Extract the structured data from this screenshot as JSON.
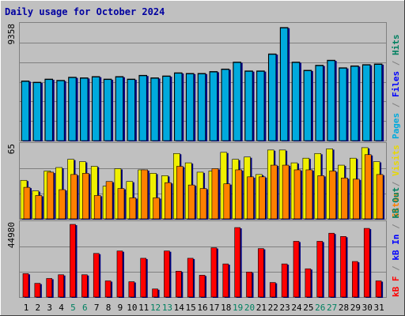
{
  "title": "Daily usage for October 2024",
  "colors": {
    "background": "#c0c0c0",
    "frame": "#808080",
    "title": "#0000a0",
    "pages": "#00aadd",
    "files": "#0000ff",
    "hits": "#008060",
    "visits": "#f0f000",
    "sites": "#ff8000",
    "kb_in": "#0000ff",
    "kb_out": "#008060",
    "kb_f": "#ff0000",
    "weekend_day": "#008060",
    "weekday_day": "#000000"
  },
  "chart_data": [
    {
      "type": "bar",
      "panel": "hits",
      "categories": [
        "1",
        "2",
        "3",
        "4",
        "5",
        "6",
        "7",
        "8",
        "9",
        "10",
        "11",
        "12",
        "13",
        "14",
        "15",
        "16",
        "17",
        "18",
        "19",
        "20",
        "21",
        "22",
        "23",
        "24",
        "25",
        "26",
        "27",
        "28",
        "29",
        "30",
        "31"
      ],
      "weekend_days": [
        "5",
        "6",
        "12",
        "13",
        "19",
        "20",
        "26",
        "27"
      ],
      "ymax_label": "9358",
      "ylim": [
        0,
        9358
      ],
      "series": [
        {
          "name": "Pages",
          "values": [
            4700,
            4600,
            4850,
            4750,
            5000,
            4950,
            5050,
            4850,
            5050,
            4850,
            5150,
            4950,
            5100,
            5350,
            5300,
            5300,
            5450,
            5650,
            6200,
            5500,
            5500,
            6850,
            8950,
            6200,
            5550,
            5950,
            6350,
            5750,
            5900,
            6000,
            6050
          ]
        },
        {
          "name": "Files",
          "values": [
            4700,
            4600,
            4850,
            4750,
            5000,
            4950,
            5050,
            4850,
            5050,
            4850,
            5150,
            4950,
            5100,
            5350,
            5300,
            5300,
            5450,
            5650,
            6200,
            5500,
            5500,
            6850,
            8950,
            6200,
            5550,
            5950,
            6350,
            5750,
            5900,
            6000,
            6050
          ]
        },
        {
          "name": "Hits",
          "values": [
            4750,
            4650,
            4900,
            4800,
            5050,
            5000,
            5100,
            4900,
            5100,
            4900,
            5200,
            5000,
            5150,
            5400,
            5350,
            5350,
            5500,
            5700,
            6250,
            5550,
            5550,
            6900,
            9000,
            6250,
            5600,
            6000,
            6400,
            5800,
            5950,
            6050,
            6100
          ]
        }
      ]
    },
    {
      "type": "bar",
      "panel": "visits",
      "categories": [
        "1",
        "2",
        "3",
        "4",
        "5",
        "6",
        "7",
        "8",
        "9",
        "10",
        "11",
        "12",
        "13",
        "14",
        "15",
        "16",
        "17",
        "18",
        "19",
        "20",
        "21",
        "22",
        "23",
        "24",
        "25",
        "26",
        "27",
        "28",
        "29",
        "30",
        "31"
      ],
      "ymax_label": "65",
      "ylim": [
        0,
        65
      ],
      "series": [
        {
          "name": "Visits",
          "values": [
            33,
            24,
            41,
            44,
            51,
            49,
            45,
            28,
            43,
            32,
            42,
            39,
            37,
            56,
            48,
            40,
            41,
            57,
            51,
            53,
            38,
            59,
            59,
            48,
            52,
            56,
            60,
            46,
            52,
            61,
            49
          ]
        },
        {
          "name": "Sites",
          "values": [
            27,
            20,
            40,
            25,
            38,
            39,
            20,
            32,
            26,
            18,
            42,
            18,
            31,
            45,
            29,
            26,
            43,
            30,
            42,
            36,
            36,
            46,
            46,
            42,
            42,
            37,
            41,
            35,
            34,
            55,
            38
          ]
        }
      ]
    },
    {
      "type": "bar",
      "panel": "kbytes",
      "categories": [
        "1",
        "2",
        "3",
        "4",
        "5",
        "6",
        "7",
        "8",
        "9",
        "10",
        "11",
        "12",
        "13",
        "14",
        "15",
        "16",
        "17",
        "18",
        "19",
        "20",
        "21",
        "22",
        "23",
        "24",
        "25",
        "26",
        "27",
        "28",
        "29",
        "30",
        "31"
      ],
      "ymax_label": "44980",
      "ylim": [
        0,
        44980
      ],
      "series": [
        {
          "name": "kB F",
          "values": [
            14500,
            8500,
            11500,
            13800,
            44980,
            13800,
            27000,
            10000,
            28500,
            9500,
            24000,
            5000,
            28500,
            16000,
            24000,
            13500,
            30500,
            20500,
            43000,
            15500,
            30000,
            9000,
            20500,
            34500,
            17500,
            34500,
            39500,
            37500,
            22000,
            42500,
            10000
          ]
        }
      ]
    }
  ],
  "legends": {
    "hits_panel": [
      {
        "label": "Pages",
        "color_key": "pages"
      },
      {
        "label": " / ",
        "color_key": "frame"
      },
      {
        "label": "Files",
        "color_key": "files"
      },
      {
        "label": " / ",
        "color_key": "frame"
      },
      {
        "label": "Hits",
        "color_key": "hits"
      }
    ],
    "visits_panel": [
      {
        "label": "Sites",
        "color_key": "sites"
      },
      {
        "label": " / ",
        "color_key": "frame"
      },
      {
        "label": "Visits",
        "color_key": "visits"
      }
    ],
    "kbytes_panel": [
      {
        "label": "kB F",
        "color_key": "kb_f"
      },
      {
        "label": " / ",
        "color_key": "frame"
      },
      {
        "label": "kB In",
        "color_key": "kb_in"
      },
      {
        "label": " / ",
        "color_key": "frame"
      },
      {
        "label": "kB Out",
        "color_key": "kb_out"
      }
    ]
  }
}
